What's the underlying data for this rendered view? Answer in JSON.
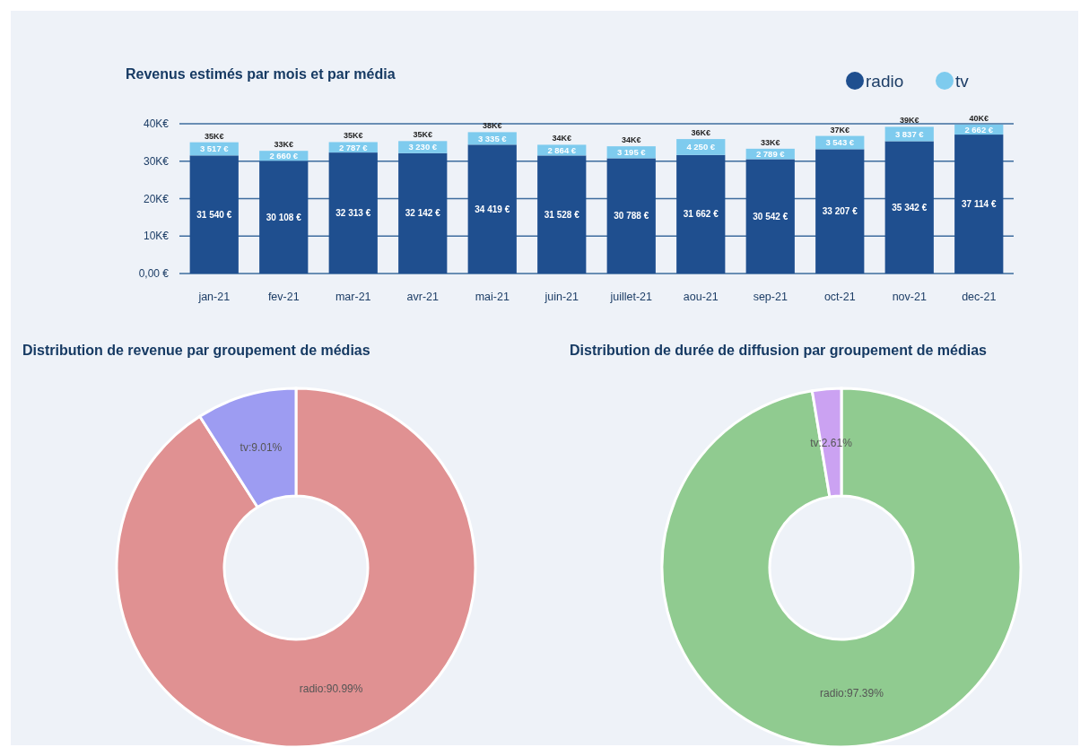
{
  "chart_data": [
    {
      "type": "bar",
      "title": "Revenus estimés par mois et par média",
      "stacked": true,
      "categories": [
        "jan-21",
        "fev-21",
        "mar-21",
        "avr-21",
        "mai-21",
        "juin-21",
        "juillet-21",
        "aou-21",
        "sep-21",
        "oct-21",
        "nov-21",
        "dec-21"
      ],
      "series": [
        {
          "name": "radio",
          "color": "#1f4f8f",
          "values": [
            31540,
            30108,
            32313,
            32142,
            34419,
            31528,
            30788,
            31662,
            30542,
            33207,
            35342,
            37114
          ],
          "value_labels": [
            "31 540 €",
            "30 108 €",
            "32 313 €",
            "32 142 €",
            "34 419 €",
            "31 528 €",
            "30 788 €",
            "31 662 €",
            "30 542 €",
            "33 207 €",
            "35 342 €",
            "37 114 €"
          ]
        },
        {
          "name": "tv",
          "color": "#7ecbee",
          "values": [
            3517,
            2660,
            2787,
            3230,
            3335,
            2864,
            3195,
            4250,
            2789,
            3543,
            3837,
            2662
          ],
          "value_labels": [
            "3 517 €",
            "2 660 €",
            "2 787 €",
            "3 230 €",
            "3 335 €",
            "2 864 €",
            "3 195 €",
            "4 250 €",
            "2 789 €",
            "3 543 €",
            "3 837 €",
            "2 662 €"
          ]
        }
      ],
      "totals": [
        "35K€",
        "33K€",
        "35K€",
        "35K€",
        "38K€",
        "34K€",
        "34K€",
        "36K€",
        "33K€",
        "37K€",
        "39K€",
        "40K€"
      ],
      "ylim": [
        0,
        40000
      ],
      "yticks": [
        {
          "value": 0,
          "label": "0,00 €"
        },
        {
          "value": 10000,
          "label": "10K€"
        },
        {
          "value": 20000,
          "label": "20K€"
        },
        {
          "value": 30000,
          "label": "30K€"
        },
        {
          "value": 40000,
          "label": "40K€"
        }
      ],
      "grid": "y",
      "legend": "top right",
      "marker": "circle"
    },
    {
      "type": "donut",
      "title": "Distribution de revenue par groupement de médias",
      "categories": [
        "radio",
        "tv"
      ],
      "values": [
        90.99,
        9.01
      ],
      "colors": [
        "#e09192",
        "#9d9cf2"
      ],
      "value_labels": [
        ":90.99%",
        ":9.01%"
      ]
    },
    {
      "type": "donut",
      "title": "Distribution de durée de diffusion par groupement de médias",
      "categories": [
        "radio",
        "tv"
      ],
      "values": [
        97.39,
        2.61
      ],
      "colors": [
        "#90cb90",
        "#cba2f2"
      ],
      "value_labels": [
        ":97.39%",
        ":2.61%"
      ]
    }
  ]
}
